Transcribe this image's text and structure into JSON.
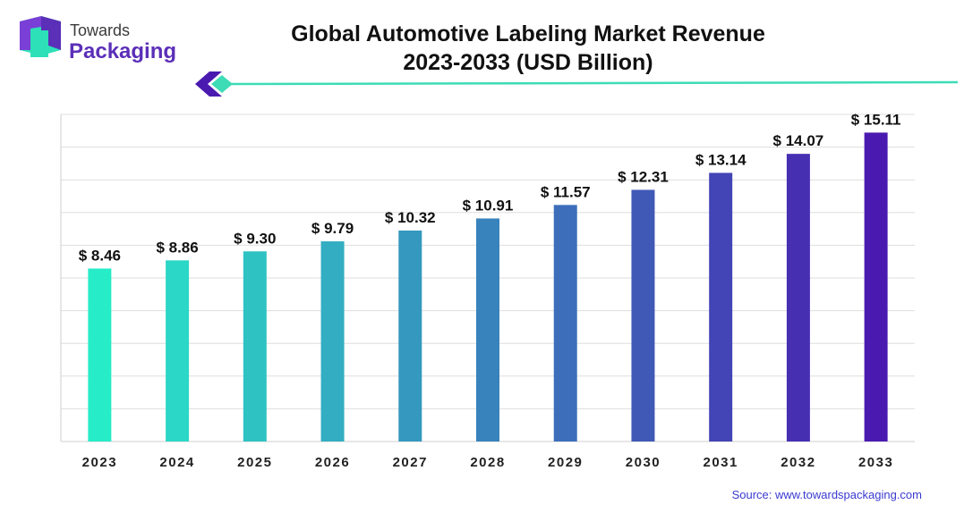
{
  "brand": {
    "line1": "Towards",
    "line2": "Packaging"
  },
  "chart_data": {
    "type": "bar",
    "title_line1": "Global Automotive Labeling Market Revenue",
    "title_line2": "2023-2033 (USD Billion)",
    "categories": [
      "2023",
      "2024",
      "2025",
      "2026",
      "2027",
      "2028",
      "2029",
      "2030",
      "2031",
      "2032",
      "2033"
    ],
    "values": [
      8.46,
      8.86,
      9.3,
      9.79,
      10.32,
      10.91,
      11.57,
      12.31,
      13.14,
      14.07,
      15.11
    ],
    "value_labels": [
      "$ 8.46",
      "$ 8.86",
      "$ 9.30",
      "$ 9.79",
      "$ 10.32",
      "$ 10.91",
      "$ 11.57",
      "$ 12.31",
      "$ 13.14",
      "$ 14.07",
      "$ 15.11"
    ],
    "ylim": [
      0,
      16
    ],
    "grid": true,
    "xlabel": "",
    "ylabel": "",
    "colors": {
      "bar_start": "#27ecc8",
      "bar_end": "#4a1ab0",
      "grid": "#dedede",
      "accent_line": "#3ddcb6"
    }
  },
  "source": "Source: www.towardspackaging.com"
}
